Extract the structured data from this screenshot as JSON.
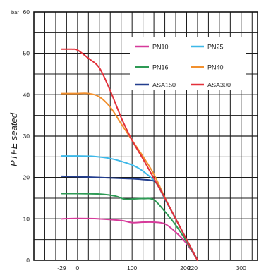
{
  "chart_data": {
    "type": "line",
    "ylabel": "PTFE seated",
    "y_unit": "bar",
    "xlim": [
      -80,
      330
    ],
    "ylim": [
      0,
      60
    ],
    "x_ticks": [
      -29,
      0,
      100,
      200,
      220,
      300
    ],
    "x_tick_labels": [
      "-29",
      "0",
      "100",
      "200",
      "220",
      "300"
    ],
    "y_ticks": [
      0,
      10,
      20,
      30,
      40,
      50,
      60
    ],
    "grid": true,
    "legend_position": "top-right",
    "series": [
      {
        "name": "PN10",
        "color": "#d63a9a",
        "points": [
          [
            -29,
            10
          ],
          [
            0,
            10.1
          ],
          [
            40,
            10
          ],
          [
            80,
            9.6
          ],
          [
            100,
            9.1
          ],
          [
            120,
            9.2
          ],
          [
            140,
            9.2
          ],
          [
            160,
            8.8
          ],
          [
            180,
            6.8
          ],
          [
            200,
            4
          ],
          [
            220,
            0
          ]
        ]
      },
      {
        "name": "PN25",
        "color": "#3db8e8",
        "points": [
          [
            -29,
            25.2
          ],
          [
            0,
            25.2
          ],
          [
            30,
            25.1
          ],
          [
            60,
            24.6
          ],
          [
            90,
            23.5
          ],
          [
            110,
            22.4
          ],
          [
            130,
            20.5
          ],
          [
            145,
            18.5
          ],
          [
            160,
            14.8
          ],
          [
            180,
            10
          ],
          [
            200,
            5
          ],
          [
            220,
            0
          ]
        ]
      },
      {
        "name": "PN16",
        "color": "#2e9a55",
        "points": [
          [
            -29,
            16.1
          ],
          [
            0,
            16.1
          ],
          [
            40,
            16
          ],
          [
            70,
            15.5
          ],
          [
            85,
            14.8
          ],
          [
            100,
            14.8
          ],
          [
            120,
            14.9
          ],
          [
            140,
            14.6
          ],
          [
            160,
            11.8
          ],
          [
            180,
            8.5
          ],
          [
            200,
            4.5
          ],
          [
            220,
            0
          ]
        ]
      },
      {
        "name": "PN40",
        "color": "#f2902e",
        "points": [
          [
            -29,
            40.3
          ],
          [
            0,
            40.3
          ],
          [
            20,
            40.3
          ],
          [
            40,
            39.5
          ],
          [
            60,
            37
          ],
          [
            80,
            33
          ],
          [
            100,
            29
          ],
          [
            120,
            25.1
          ],
          [
            140,
            20.8
          ],
          [
            160,
            15.2
          ],
          [
            180,
            10
          ],
          [
            200,
            5
          ],
          [
            220,
            0
          ]
        ]
      },
      {
        "name": "ASA150",
        "color": "#233e8e",
        "points": [
          [
            -29,
            20.3
          ],
          [
            0,
            20.2
          ],
          [
            40,
            20
          ],
          [
            80,
            19.8
          ],
          [
            100,
            19.7
          ],
          [
            120,
            19.5
          ],
          [
            135,
            19.3
          ],
          [
            145,
            18.6
          ],
          [
            160,
            15
          ],
          [
            180,
            10
          ],
          [
            200,
            5
          ],
          [
            220,
            0
          ]
        ]
      },
      {
        "name": "ASA300",
        "color": "#e3303a",
        "points": [
          [
            -29,
            51
          ],
          [
            -10,
            51
          ],
          [
            0,
            50.8
          ],
          [
            20,
            48.8
          ],
          [
            40,
            46.5
          ],
          [
            60,
            41
          ],
          [
            80,
            34.5
          ],
          [
            100,
            29
          ],
          [
            120,
            24.5
          ],
          [
            140,
            19.8
          ],
          [
            160,
            15
          ],
          [
            180,
            10
          ],
          [
            200,
            5
          ],
          [
            220,
            0
          ]
        ]
      }
    ]
  }
}
